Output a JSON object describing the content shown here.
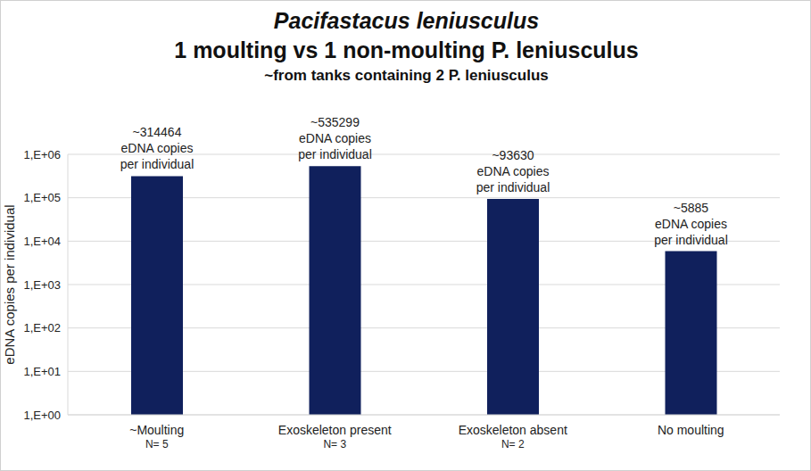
{
  "chart_data": {
    "type": "bar",
    "title": [
      "Pacifastacus leniusculus",
      "1 moulting vs 1 non-moulting P. leniusculus"
    ],
    "subtitle": "~from tanks containing 2 P. leniusculus",
    "y_label": "eDNA copies per individual",
    "categories": [
      "~Moulting",
      "Exoskeleton present",
      "Exoskeleton absent",
      "No moulting"
    ],
    "sample_sizes": [
      "N= 5",
      "N= 3",
      "N= 2",
      null
    ],
    "values": [
      314464,
      535299,
      93630,
      5885
    ],
    "value_labels": [
      "~314464 eDNA copies per individual",
      "~535299 eDNA copies per individual",
      "~93630 eDNA copies per individual",
      "~5885 eDNA copies per individual"
    ],
    "data_labels": true,
    "color": "#10205c",
    "log": "y",
    "ylim": [
      1,
      1000000
    ],
    "yticks": [
      {
        "value": 1,
        "label": "1,E+00"
      },
      {
        "value": 10,
        "label": "1,E+01"
      },
      {
        "value": 100,
        "label": "1,E+02"
      },
      {
        "value": 1000,
        "label": "1,E+03"
      },
      {
        "value": 10000,
        "label": "1,E+04"
      },
      {
        "value": 100000,
        "label": "1,E+05"
      },
      {
        "value": 1000000,
        "label": "1,E+06"
      }
    ],
    "grid": true
  }
}
